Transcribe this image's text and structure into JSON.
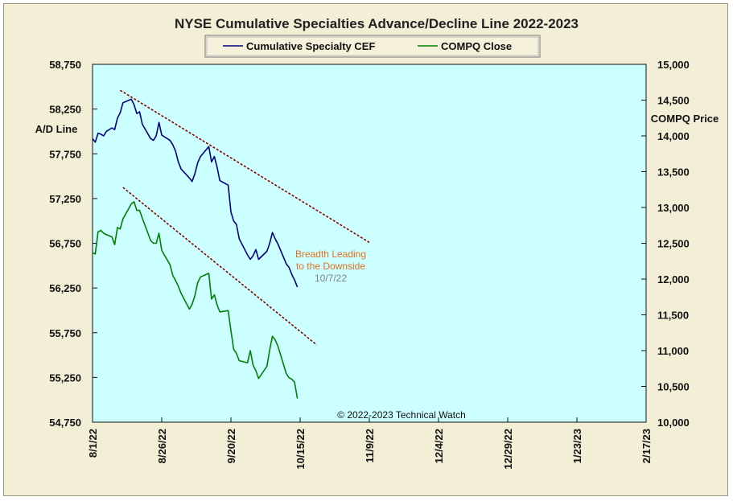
{
  "chart_data": {
    "type": "line",
    "title": "NYSE Cumulative Specialties Advance/Decline Line 2022-2023",
    "y_left_label": "A/D Line",
    "y_right_label": "COMPQ Price",
    "y_left_lim": [
      54750,
      58750
    ],
    "y_left_ticks": [
      "58,750",
      "58,250",
      "57,750",
      "57,250",
      "56,750",
      "56,250",
      "55,750",
      "55,250",
      "54,750"
    ],
    "y_right_lim": [
      10000,
      15000
    ],
    "y_right_ticks": [
      "15,000",
      "14,500",
      "14,000",
      "13,500",
      "13,000",
      "12,500",
      "12,000",
      "11,500",
      "11,000",
      "10,500",
      "10,000"
    ],
    "x_ticks": [
      "8/1/22",
      "8/26/22",
      "9/20/22",
      "10/15/22",
      "11/9/22",
      "12/4/22",
      "12/29/22",
      "1/23/23",
      "2/17/23"
    ],
    "x_range_days": [
      0,
      200
    ],
    "legend": {
      "position": "top-center",
      "entries": [
        "Cumulative Specialty CEF",
        "COMPQ Close"
      ]
    },
    "grid": false,
    "series": [
      {
        "name": "Cumulative Specialty CEF",
        "axis": "left",
        "color": "#000080",
        "x": [
          0,
          1,
          2,
          3,
          4,
          5,
          7,
          8,
          9,
          10,
          11,
          14,
          15,
          16,
          17,
          18,
          21,
          22,
          23,
          24,
          25,
          28,
          29,
          30,
          31,
          32,
          35,
          36,
          37,
          38,
          39,
          42,
          43,
          44,
          45,
          46,
          49,
          50,
          51,
          52,
          53,
          56,
          57,
          58,
          59,
          60,
          63,
          64,
          65,
          66,
          67,
          70,
          71,
          72,
          73,
          74
        ],
        "values": [
          57920,
          57880,
          57980,
          57970,
          57950,
          58000,
          58040,
          58020,
          58150,
          58210,
          58320,
          58360,
          58300,
          58200,
          58220,
          58080,
          57920,
          57900,
          57950,
          58100,
          57960,
          57900,
          57850,
          57780,
          57660,
          57580,
          57480,
          57440,
          57530,
          57650,
          57720,
          57830,
          57660,
          57720,
          57600,
          57450,
          57400,
          57100,
          57000,
          56960,
          56800,
          56620,
          56570,
          56610,
          56680,
          56570,
          56660,
          56750,
          56870,
          56800,
          56740,
          56520,
          56480,
          56400,
          56340,
          56260
        ]
      },
      {
        "name": "COMPQ Close",
        "axis": "right",
        "color": "#008000",
        "x": [
          0,
          1,
          2,
          3,
          4,
          5,
          7,
          8,
          9,
          10,
          11,
          14,
          15,
          16,
          17,
          18,
          21,
          22,
          23,
          24,
          25,
          28,
          29,
          30,
          31,
          32,
          35,
          36,
          37,
          38,
          39,
          42,
          43,
          44,
          45,
          46,
          49,
          50,
          51,
          52,
          53,
          56,
          57,
          58,
          59,
          60,
          63,
          64,
          65,
          66,
          67,
          70,
          71,
          72,
          73,
          74
        ],
        "values": [
          12370,
          12350,
          12660,
          12680,
          12640,
          12620,
          12590,
          12480,
          12720,
          12700,
          12840,
          13050,
          13080,
          12960,
          12960,
          12850,
          12540,
          12500,
          12500,
          12640,
          12400,
          12200,
          12050,
          11980,
          11900,
          11800,
          11580,
          11650,
          11770,
          11950,
          12030,
          12080,
          11720,
          11780,
          11640,
          11540,
          11560,
          11280,
          11020,
          10960,
          10860,
          10830,
          11000,
          10800,
          10720,
          10610,
          10780,
          11010,
          11200,
          11150,
          11060,
          10680,
          10620,
          10600,
          10560,
          10330
        ]
      }
    ],
    "trendlines": [
      {
        "axis": "left",
        "from": [
          10,
          58460
        ],
        "to": [
          100,
          56760
        ],
        "color": "#8b0000"
      },
      {
        "axis": "right",
        "from": [
          11,
          13280
        ],
        "to": [
          81,
          11080
        ],
        "color": "#8b0000"
      }
    ],
    "annotations": {
      "breadth_line1": "Breadth Leading",
      "breadth_line2": "to the Downside",
      "breadth_date": "10/7/22",
      "copyright": "© 2022-2023  Technical Watch"
    },
    "colors": {
      "background": "#f3eed6",
      "plot_background": "#ccffff",
      "annotation_orange": "#e07020",
      "annotation_gray": "#808080"
    }
  }
}
